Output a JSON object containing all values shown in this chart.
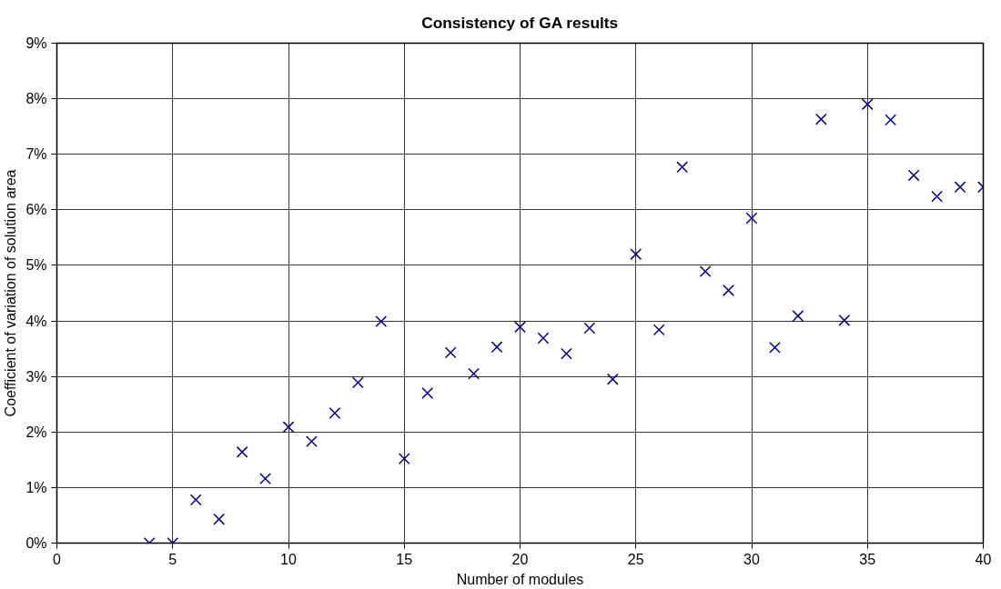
{
  "chart_data": {
    "type": "scatter",
    "title": "Consistency of GA results",
    "xlabel": "Number of modules",
    "ylabel": "Coefficient of variation of solution area",
    "x": [
      4,
      5,
      6,
      7,
      8,
      9,
      10,
      11,
      12,
      13,
      14,
      15,
      16,
      17,
      18,
      19,
      20,
      21,
      22,
      23,
      24,
      25,
      26,
      27,
      28,
      29,
      30,
      31,
      32,
      33,
      34,
      35,
      36,
      37,
      38,
      39,
      40
    ],
    "series": [
      {
        "color": "#000080",
        "values": [
          0,
          0,
          0.78,
          0.43,
          1.64,
          1.16,
          2.09,
          1.83,
          2.34,
          2.89,
          3.99,
          1.52,
          2.7,
          3.43,
          3.05,
          3.53,
          3.89,
          3.69,
          3.41,
          3.87,
          2.95,
          5.2,
          3.84,
          6.77,
          4.89,
          4.55,
          5.85,
          3.52,
          4.09,
          7.63,
          4.01,
          7.9,
          7.62,
          6.62,
          6.24,
          6.41,
          6.41
        ]
      }
    ],
    "xlim": [
      0,
      40
    ],
    "xticks": [
      0,
      5,
      10,
      15,
      20,
      25,
      30,
      35,
      40
    ],
    "ylim": [
      0,
      9
    ],
    "yticks": [
      {
        "value": 0,
        "label": "0%"
      },
      {
        "value": 1,
        "label": "1%"
      },
      {
        "value": 2,
        "label": "2%"
      },
      {
        "value": 3,
        "label": "3%"
      },
      {
        "value": 4,
        "label": "4%"
      },
      {
        "value": 5,
        "label": "5%"
      },
      {
        "value": 6,
        "label": "6%"
      },
      {
        "value": 7,
        "label": "7%"
      },
      {
        "value": 8,
        "label": "8%"
      },
      {
        "value": 9,
        "label": "9%"
      }
    ],
    "grid": true,
    "marker": "cross"
  }
}
